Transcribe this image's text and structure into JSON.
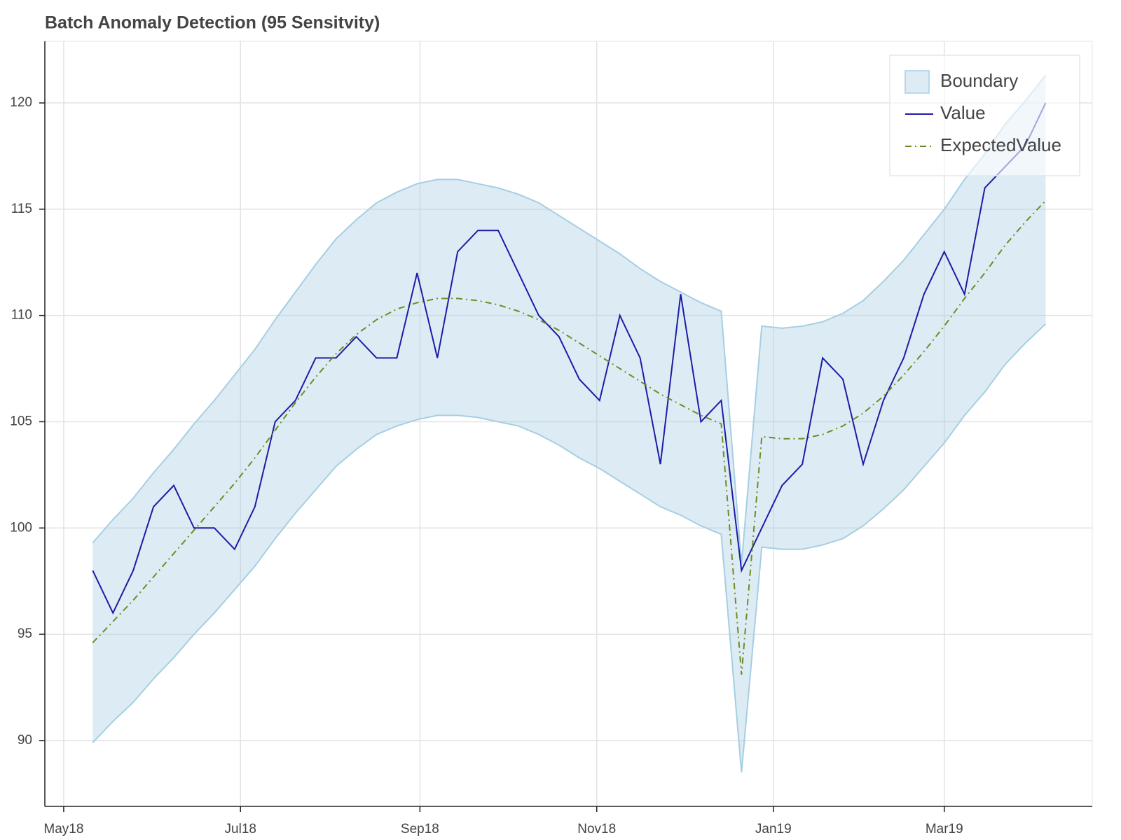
{
  "chart_data": {
    "type": "line",
    "title": "Batch Anomaly Detection (95 Sensitvity)",
    "xlim": [
      -2.36,
      49.3
    ],
    "xticks": [
      {
        "value": -1.43,
        "label": "May18"
      },
      {
        "value": 7.29,
        "label": "Jul18"
      },
      {
        "value": 16.14,
        "label": "Sep18"
      },
      {
        "value": 24.86,
        "label": "Nov18"
      },
      {
        "value": 33.57,
        "label": "Jan19"
      },
      {
        "value": 42.0,
        "label": "Mar19"
      }
    ],
    "ylim": [
      86.9,
      122.9
    ],
    "yticks": [
      90,
      95,
      100,
      105,
      110,
      115,
      120
    ],
    "grid": true,
    "legend": "top-right",
    "series": [
      {
        "name": "Boundary",
        "kind": "band",
        "color": "#a6cee3",
        "upper": [
          99.3,
          100.4,
          101.4,
          102.6,
          103.7,
          104.9,
          106.0,
          107.2,
          108.4,
          109.8,
          111.1,
          112.4,
          113.6,
          114.5,
          115.3,
          115.8,
          116.2,
          116.4,
          116.4,
          116.2,
          116.0,
          115.7,
          115.3,
          114.7,
          114.1,
          113.5,
          112.9,
          112.2,
          111.6,
          111.1,
          110.6,
          110.2,
          98.3,
          109.5,
          109.4,
          109.5,
          109.7,
          110.1,
          110.7,
          111.6,
          112.6,
          113.8,
          115.0,
          116.4,
          117.6,
          119.0,
          120.1,
          121.3
        ],
        "lower": [
          89.9,
          90.9,
          91.8,
          92.9,
          93.9,
          95.0,
          96.0,
          97.1,
          98.2,
          99.5,
          100.7,
          101.8,
          102.9,
          103.7,
          104.4,
          104.8,
          105.1,
          105.3,
          105.3,
          105.2,
          105.0,
          104.8,
          104.4,
          103.9,
          103.3,
          102.8,
          102.2,
          101.6,
          101.0,
          100.6,
          100.1,
          99.7,
          88.5,
          99.1,
          99.0,
          99.0,
          99.2,
          99.5,
          100.1,
          100.9,
          101.8,
          102.9,
          104.0,
          105.3,
          106.4,
          107.7,
          108.7,
          109.6
        ]
      },
      {
        "name": "Value",
        "kind": "line",
        "color": "#1c1ca6",
        "values": [
          98,
          96,
          98,
          101,
          102,
          100,
          100,
          99,
          101,
          105,
          106,
          108,
          108,
          109,
          108,
          108,
          112,
          108,
          113,
          114,
          114,
          112,
          110,
          109,
          107,
          106,
          110,
          108,
          103,
          111,
          105,
          106,
          98,
          100,
          102,
          103,
          108,
          107,
          103,
          106,
          108,
          111,
          113,
          111,
          116,
          117,
          118,
          120
        ]
      },
      {
        "name": "ExpectedValue",
        "kind": "dashdot",
        "color": "#6b8e23",
        "values": [
          94.6,
          95.6,
          96.6,
          97.7,
          98.8,
          99.9,
          101.0,
          102.1,
          103.3,
          104.6,
          105.9,
          107.1,
          108.2,
          109.1,
          109.8,
          110.3,
          110.6,
          110.8,
          110.8,
          110.7,
          110.5,
          110.2,
          109.8,
          109.3,
          108.7,
          108.1,
          107.5,
          106.9,
          106.3,
          105.8,
          105.3,
          104.9,
          93.1,
          104.3,
          104.2,
          104.2,
          104.4,
          104.8,
          105.4,
          106.2,
          107.2,
          108.3,
          109.5,
          110.8,
          112.0,
          113.3,
          114.4,
          115.4
        ]
      }
    ]
  }
}
